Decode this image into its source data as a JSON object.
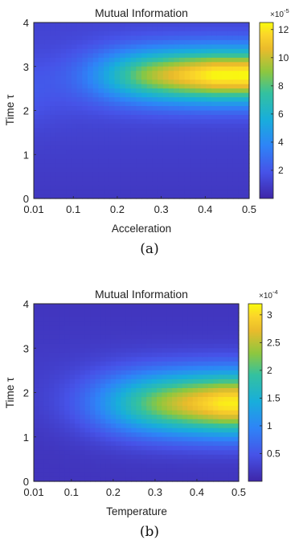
{
  "chart_data": [
    {
      "type": "heatmap",
      "title": "Mutual Information",
      "xlabel": "Acceleration",
      "ylabel": "Time τ",
      "xlim": [
        0.01,
        0.5
      ],
      "ylim": [
        0,
        4
      ],
      "x_ticks": [
        "0.01",
        "0.1",
        "0.2",
        "0.3",
        "0.4",
        "0.5"
      ],
      "x_tick_values": [
        0.01,
        0.1,
        0.2,
        0.3,
        0.4,
        0.5
      ],
      "y_ticks": [
        "0",
        "1",
        "2",
        "3",
        "4"
      ],
      "colorbar": {
        "exponent_label": "×10",
        "exponent": "-5",
        "range": [
          0,
          12.5
        ],
        "ticks": [
          "2",
          "4",
          "6",
          "8",
          "10",
          "12"
        ],
        "tick_values": [
          2,
          4,
          6,
          8,
          10,
          12
        ]
      },
      "peak": {
        "x": 0.45,
        "y": 2.8,
        "value": 12
      },
      "caption": "(a)"
    },
    {
      "type": "heatmap",
      "title": "Mutual Information",
      "xlabel": "Temperature",
      "ylabel": "Time τ",
      "xlim": [
        0.01,
        0.5
      ],
      "ylim": [
        0,
        4
      ],
      "x_ticks": [
        "0.01",
        "0.1",
        "0.2",
        "0.3",
        "0.4",
        "0.5"
      ],
      "x_tick_values": [
        0.01,
        0.1,
        0.2,
        0.3,
        0.4,
        0.5
      ],
      "y_ticks": [
        "0",
        "1",
        "2",
        "3",
        "4"
      ],
      "colorbar": {
        "exponent_label": "×10",
        "exponent": "-4",
        "range": [
          0,
          3.2
        ],
        "ticks": [
          "0.5",
          "1",
          "1.5",
          "2",
          "2.5",
          "3"
        ],
        "tick_values": [
          0.5,
          1,
          1.5,
          2,
          2.5,
          3
        ]
      },
      "peak": {
        "x": 0.47,
        "y": 1.75,
        "value": 3.1
      },
      "caption": "(b)"
    }
  ]
}
